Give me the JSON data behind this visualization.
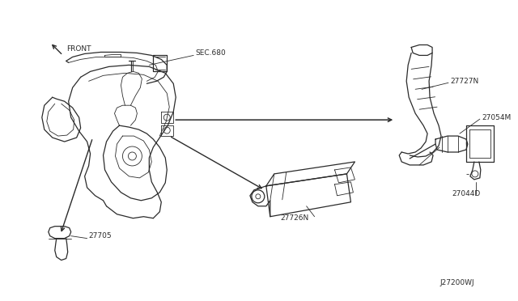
{
  "background_color": "#ffffff",
  "line_color": "#2a2a2a",
  "fig_width": 6.4,
  "fig_height": 3.72,
  "dpi": 100,
  "labels": {
    "front": "FRONT",
    "sec680": "SEC.680",
    "27727N": "27727N",
    "27054M": "27054M",
    "27044D": "27044D",
    "27726N": "27726N",
    "27705": "27705",
    "J27200WJ": "J27200WJ"
  }
}
